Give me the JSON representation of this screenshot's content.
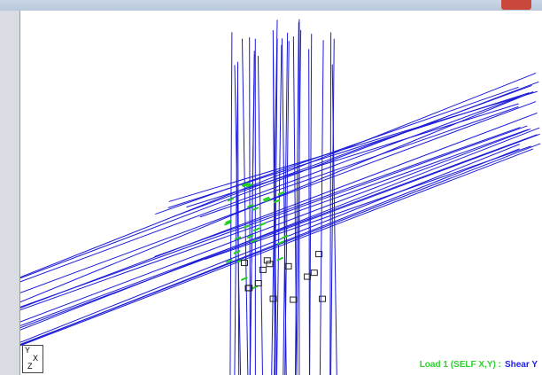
{
  "window": {
    "axes": {
      "y": "Y",
      "x": "X",
      "z": "Z"
    },
    "status": {
      "load": "Load 1 (SELF X,Y) :",
      "result": "Shear Y"
    }
  }
}
